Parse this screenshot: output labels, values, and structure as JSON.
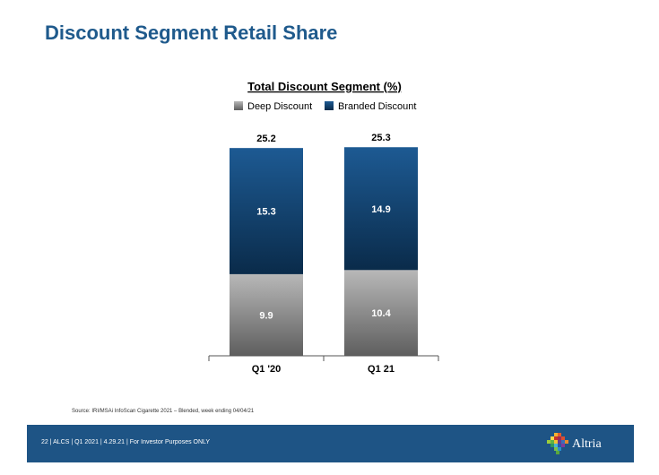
{
  "slide": {
    "title": "Discount Segment Retail Share",
    "source": "Source:  IRI/MSAi InfoScan Cigarette 2021 – Blended, week ending 04/04/21",
    "footer": "22 | ALCS | Q1 2021 | 4.29.21 | For Investor Purposes ONLY",
    "logo_text": "Altria"
  },
  "colors": {
    "title": "#1f5a8c",
    "footer_bg": "#1e5485",
    "deep_discount": "#8c8c8c",
    "branded_discount": "#0f3d66"
  },
  "chart_data": {
    "type": "bar",
    "stacked": true,
    "title": "Total Discount Segment (%)",
    "categories": [
      "Q1 '20",
      "Q1 21"
    ],
    "series": [
      {
        "name": "Deep Discount",
        "values": [
          9.9,
          10.4
        ],
        "color": "#8c8c8c"
      },
      {
        "name": "Branded Discount",
        "values": [
          15.3,
          14.9
        ],
        "color": "#0f3d66"
      }
    ],
    "totals": [
      25.2,
      25.3
    ],
    "legend_position": "top",
    "grid": false
  }
}
